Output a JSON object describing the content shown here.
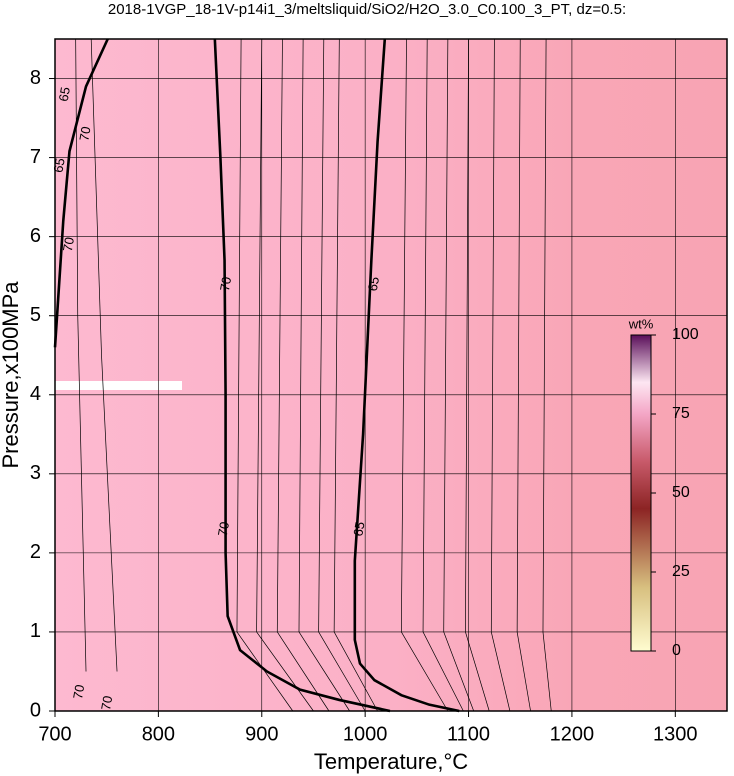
{
  "chart_data": {
    "type": "contour",
    "title": "2018-1VGP_18-1V-p14i1_3/meltsliquid/SiO2/H2O_3.0_C0.100_3_PT, dz=0.5:",
    "x_label": "Temperature,°C",
    "y_label": "Pressure,x100MPa",
    "xlim": [
      700,
      1350
    ],
    "ylim": [
      0,
      8.5
    ],
    "xticks": [
      700,
      800,
      900,
      1000,
      1100,
      1200,
      1300
    ],
    "yticks": [
      0,
      1,
      2,
      3,
      4,
      5,
      6,
      7,
      8
    ],
    "grid": true,
    "contours": [
      {
        "level": 70,
        "x": [
          854.6,
          860,
          864,
          865,
          865,
          867,
          879,
          905,
          937,
          975,
          1024
        ],
        "y": [
          8.5,
          7,
          5.7,
          4,
          2,
          1.2,
          0.77,
          0.5,
          0.27,
          0.14,
          0
        ]
      },
      {
        "level": 65,
        "x": [
          1019,
          1012,
          1006,
          998,
          990,
          990,
          995,
          1009,
          1035,
          1062,
          1091
        ],
        "y": [
          8.5,
          7.2,
          5.7,
          3.5,
          1.9,
          0.9,
          0.6,
          0.39,
          0.2,
          0.08,
          0
        ]
      },
      {
        "level": 70,
        "x": [
          700,
          703,
          708,
          714,
          730,
          751
        ],
        "y": [
          4.6,
          5.2,
          6.2,
          7.08,
          7.9,
          8.5
        ]
      }
    ],
    "minor_contours": [
      {
        "x": [
          880,
          876,
          930
        ],
        "y": [
          8.5,
          1,
          0
        ]
      },
      {
        "x": [
          900,
          895,
          950
        ],
        "y": [
          8.5,
          1,
          0
        ]
      },
      {
        "x": [
          920,
          915,
          965
        ],
        "y": [
          8.5,
          1,
          0
        ]
      },
      {
        "x": [
          940,
          936,
          985
        ],
        "y": [
          8.5,
          1,
          0
        ]
      },
      {
        "x": [
          960,
          955,
          1000
        ],
        "y": [
          8.5,
          1,
          0
        ]
      },
      {
        "x": [
          975,
          970,
          1012
        ],
        "y": [
          8.5,
          1,
          0
        ]
      },
      {
        "x": [
          1040,
          1035,
          1080
        ],
        "y": [
          8.5,
          1,
          0
        ]
      },
      {
        "x": [
          1060,
          1056,
          1095
        ],
        "y": [
          8.5,
          1,
          0
        ]
      },
      {
        "x": [
          1080,
          1076,
          1105
        ],
        "y": [
          8.5,
          1,
          0
        ]
      },
      {
        "x": [
          1100,
          1097,
          1120
        ],
        "y": [
          8.5,
          1,
          0
        ]
      },
      {
        "x": [
          1125,
          1122,
          1140
        ],
        "y": [
          8.5,
          1,
          0
        ]
      },
      {
        "x": [
          1150,
          1147,
          1160
        ],
        "y": [
          8.5,
          1,
          0
        ]
      },
      {
        "x": [
          1175,
          1172,
          1180
        ],
        "y": [
          8.5,
          1,
          0
        ]
      },
      {
        "x": [
          720,
          722,
          730
        ],
        "y": [
          8.5,
          5,
          0.5
        ]
      },
      {
        "x": [
          735,
          745,
          760
        ],
        "y": [
          8.5,
          4.5,
          0.5
        ]
      }
    ],
    "annotations": [
      {
        "text": "70",
        "x": 730,
        "y": 7.3
      },
      {
        "x": 710,
        "y": 7.8,
        "text": "65"
      },
      {
        "x": 705,
        "y": 6.9,
        "text": "65"
      },
      {
        "x": 714,
        "y": 5.9,
        "text": "70"
      },
      {
        "x": 866,
        "y": 5.4,
        "text": "70"
      },
      {
        "x": 1009,
        "y": 5.4,
        "text": "65"
      },
      {
        "x": 864,
        "y": 2.3,
        "text": "70"
      },
      {
        "x": 995,
        "y": 2.3,
        "text": "65"
      },
      {
        "x": 724,
        "y": 0.24,
        "text": "70"
      },
      {
        "x": 751,
        "y": 0.1,
        "text": "70"
      }
    ],
    "colorbar": {
      "label": "wt%",
      "lim": [
        0,
        100
      ],
      "ticks": [
        0,
        25,
        50,
        75,
        100
      ]
    }
  }
}
